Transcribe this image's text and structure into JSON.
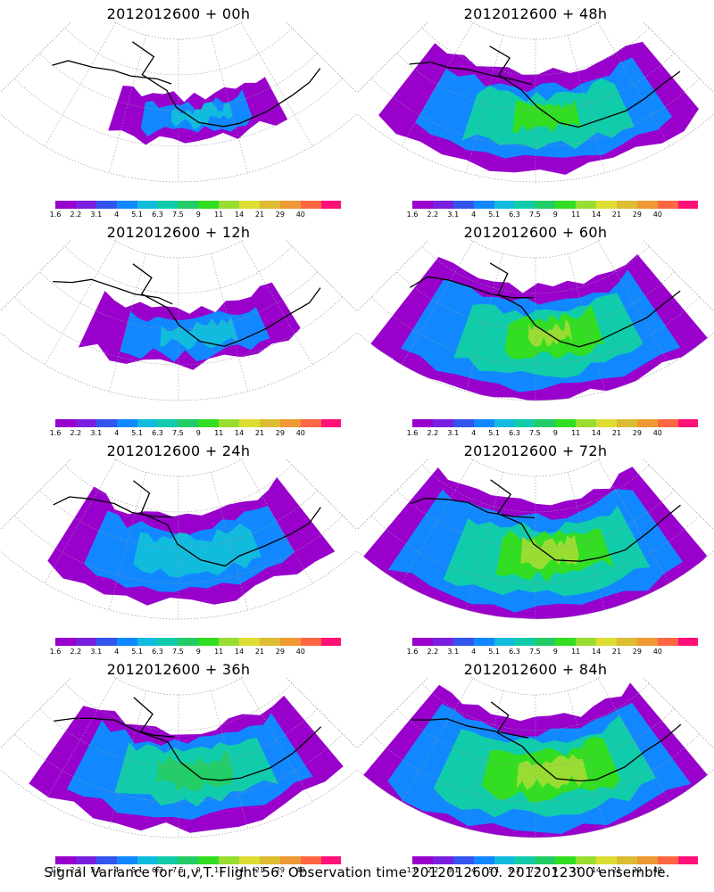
{
  "panels": [
    {
      "title": "2012012600 + 00h"
    },
    {
      "title": "2012012600 + 48h"
    },
    {
      "title": "2012012600 + 12h"
    },
    {
      "title": "2012012600 + 60h"
    },
    {
      "title": "2012012600 + 24h"
    },
    {
      "title": "2012012600 + 72h"
    },
    {
      "title": "2012012600 + 36h"
    },
    {
      "title": "2012012600 + 84h"
    }
  ],
  "colorbar": {
    "labels": [
      "1.6",
      "2.2",
      "3.1",
      "4",
      "5.1",
      "6.3",
      "7.5",
      "9",
      "11",
      "14",
      "21",
      "29",
      "40"
    ],
    "colors": [
      "#9900cc",
      "#7a1fe0",
      "#3355ee",
      "#1188ff",
      "#11bbdd",
      "#11ccaa",
      "#22cc66",
      "#33dd22",
      "#99dd33",
      "#dddd33",
      "#ddbb33",
      "#ee9933",
      "#ff6644",
      "#ff1177"
    ]
  },
  "caption": "Signal Variance for u,v,T. Flight 56. Observation time 2012012600. 2012012300 ensemble."
}
